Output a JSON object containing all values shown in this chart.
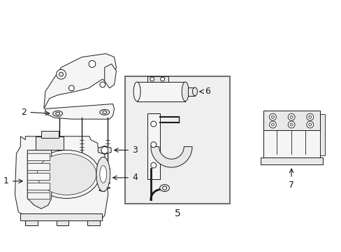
{
  "background_color": "#ffffff",
  "line_color": "#1a1a1a",
  "label_color": "#000000",
  "font_size": 9,
  "figsize": [
    4.89,
    3.6
  ],
  "dpi": 100,
  "parts_fill": "#f5f5f5",
  "parts_fill2": "#e8e8e8",
  "box5_fill": "#ebebeb",
  "box5_edge": "#666666"
}
